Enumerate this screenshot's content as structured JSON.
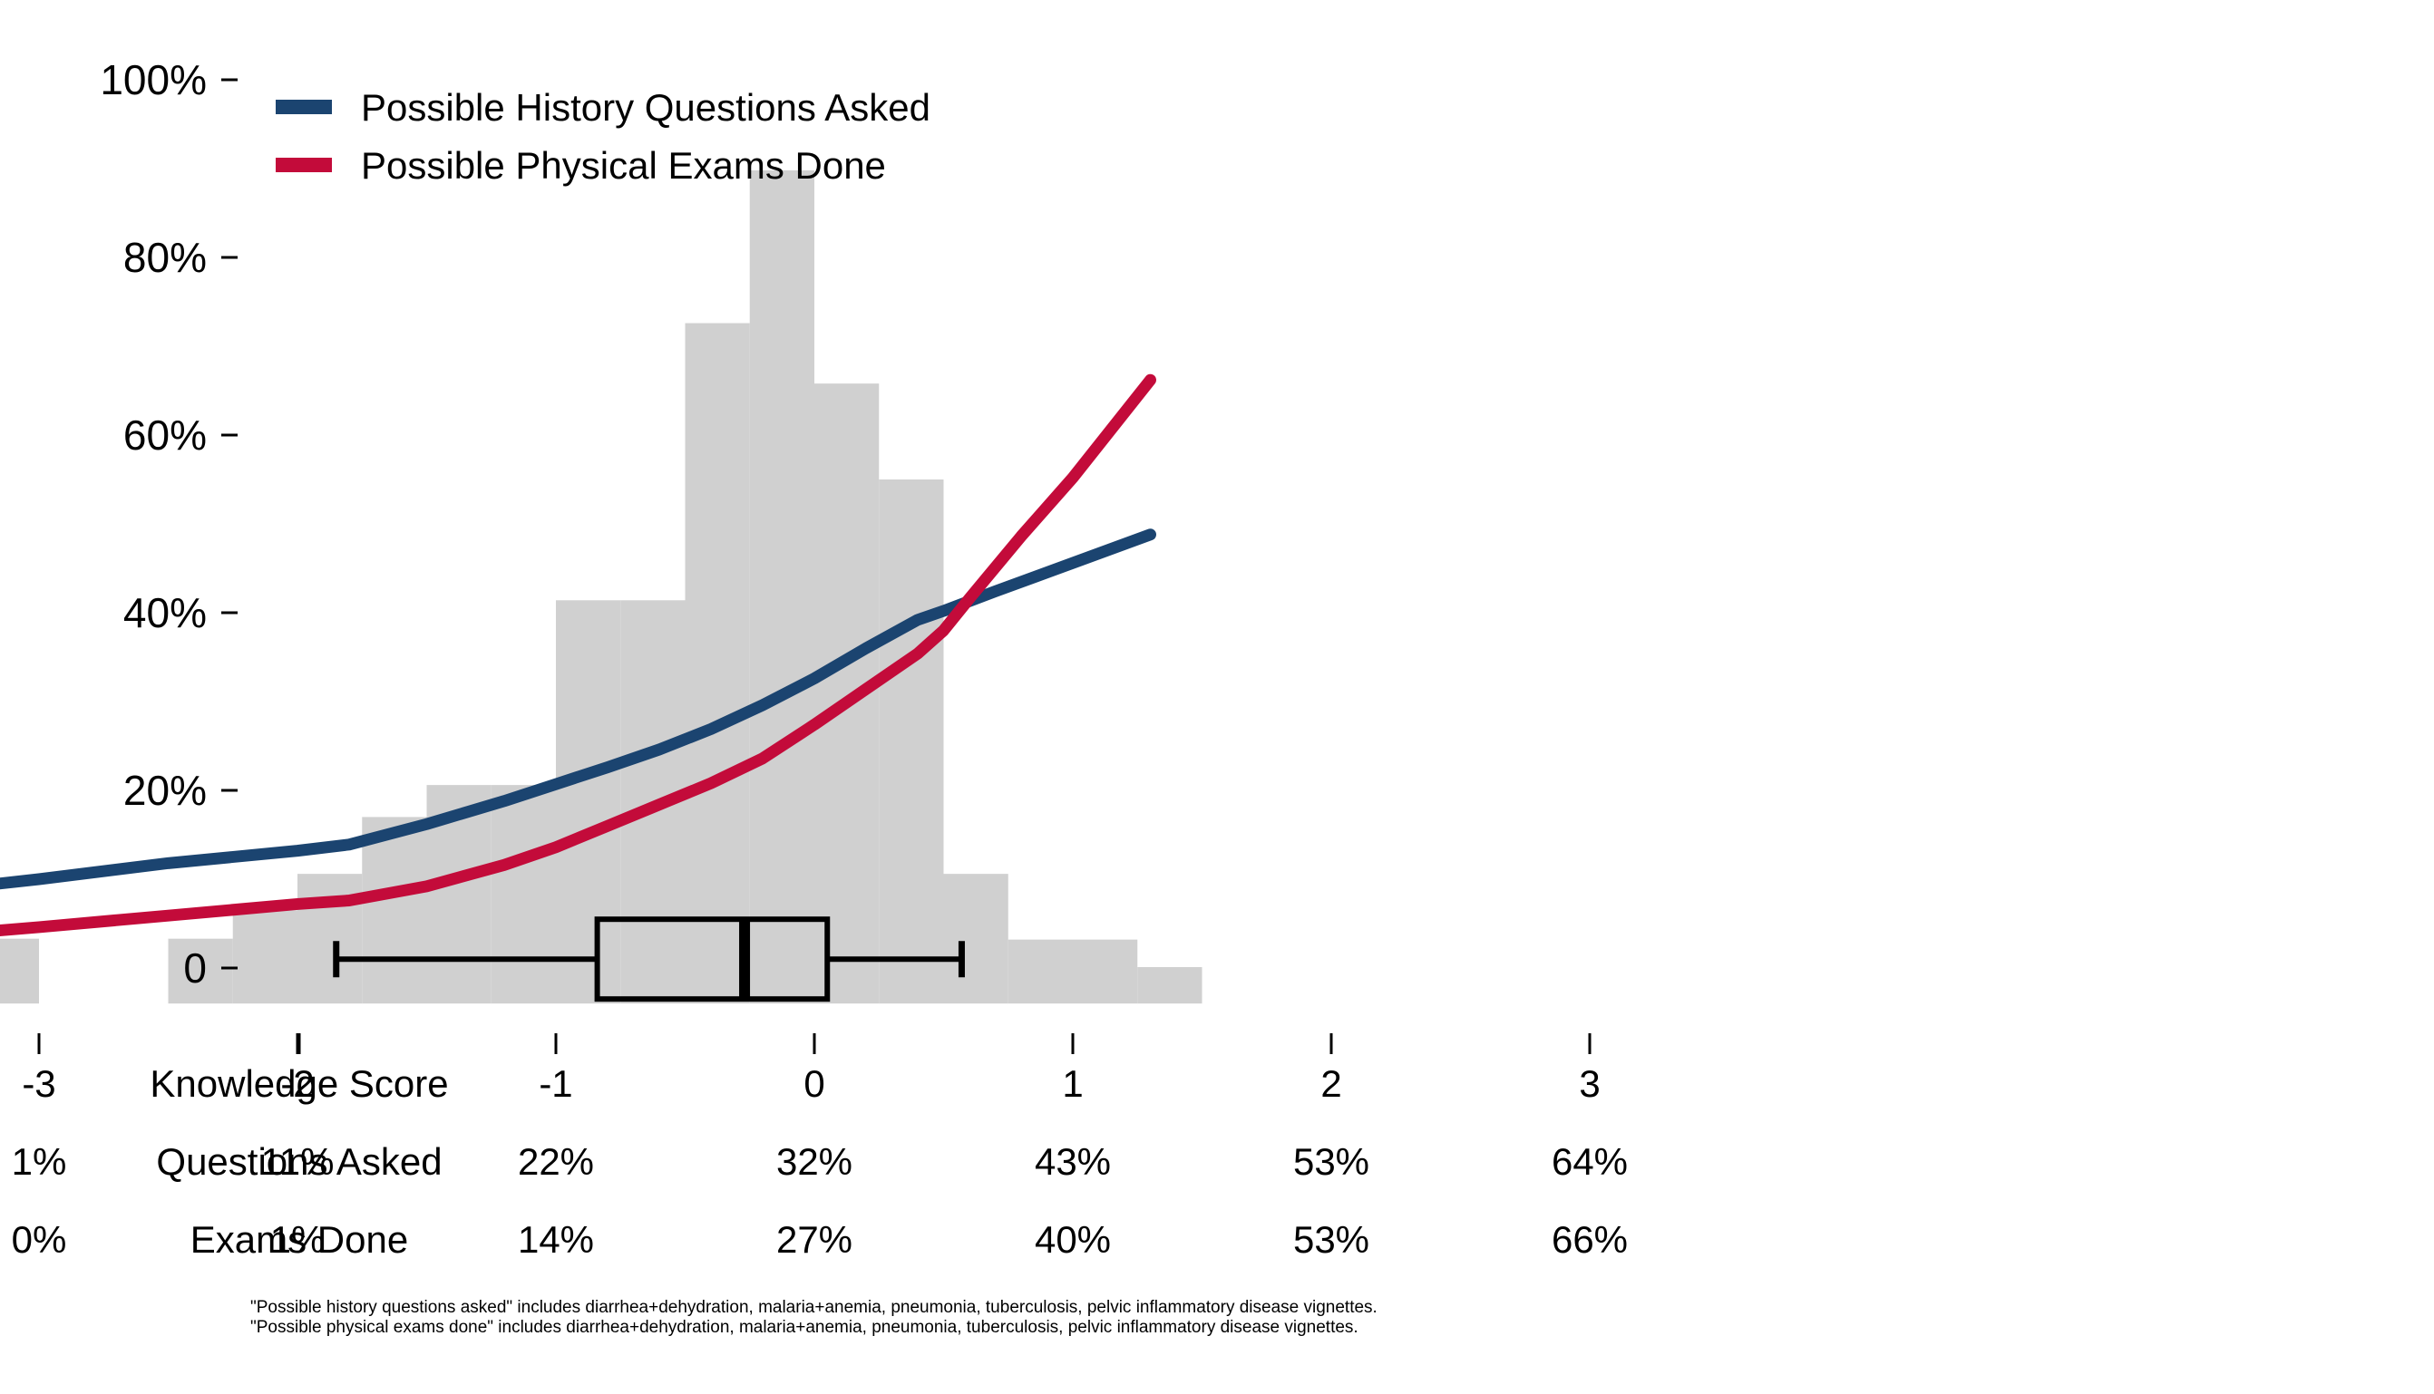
{
  "chart_data": {
    "type": "line",
    "title": "",
    "xlabel": "",
    "ylabel": "",
    "y_ticks": [
      "0",
      "20%",
      "40%",
      "60%",
      "80%",
      "100%"
    ],
    "y_tick_values": [
      0,
      20,
      40,
      60,
      80,
      100
    ],
    "ylim": [
      -4.5,
      100
    ],
    "xlim": [
      -4.0,
      3.0
    ],
    "legend": {
      "placement": "top-left",
      "entries": [
        {
          "label": "Possible History Questions Asked",
          "color": "#1b4470"
        },
        {
          "label": "Possible Physical Exams Done",
          "color": "#c30b3a"
        }
      ]
    },
    "series": [
      {
        "name": "Possible History Questions Asked",
        "color": "#1b4470",
        "x": [
          -3.5,
          -3.0,
          -2.5,
          -2.0,
          -1.8,
          -1.5,
          -1.2,
          -1.0,
          -0.8,
          -0.6,
          -0.4,
          -0.2,
          0.0,
          0.2,
          0.4,
          0.5,
          0.7,
          1.0,
          1.3
        ],
        "y": [
          8.4,
          10.0,
          11.8,
          13.2,
          13.9,
          16.2,
          18.8,
          20.7,
          22.6,
          24.6,
          26.9,
          29.6,
          32.6,
          36.0,
          39.2,
          40.2,
          42.4,
          45.6,
          48.8
        ]
      },
      {
        "name": "Possible Physical Exams Done",
        "color": "#c30b3a",
        "x": [
          -3.5,
          -3.0,
          -2.5,
          -2.0,
          -1.8,
          -1.5,
          -1.2,
          -1.0,
          -0.8,
          -0.6,
          -0.4,
          -0.2,
          0.0,
          0.2,
          0.4,
          0.5,
          0.6,
          0.8,
          1.0,
          1.3
        ],
        "y": [
          3.4,
          4.6,
          5.9,
          7.2,
          7.6,
          9.2,
          11.6,
          13.6,
          16.0,
          18.4,
          20.8,
          23.6,
          27.4,
          31.4,
          35.4,
          38.0,
          41.6,
          48.6,
          55.2,
          66.2
        ]
      }
    ],
    "histogram": {
      "color": "#d0d0d0",
      "bin_edges": [
        -3.5,
        -3.25,
        -3.0,
        -2.75,
        -2.5,
        -2.25,
        -2.0,
        -1.75,
        -1.5,
        -1.25,
        -1.0,
        -0.75,
        -0.5,
        -0.25,
        0.0,
        0.25,
        0.5,
        0.75,
        1.0,
        1.25,
        1.5
      ],
      "heights": [
        3.3,
        3.3,
        0,
        0,
        3.3,
        6.5,
        10.6,
        17.0,
        20.6,
        20.6,
        41.4,
        41.4,
        72.6,
        89.8,
        65.8,
        55.0,
        10.6,
        3.2,
        3.2,
        0.1
      ]
    },
    "boxplot": {
      "whisker_low": -1.85,
      "q1": -0.84,
      "median": -0.27,
      "q3": 0.05,
      "whisker_high": 0.57
    },
    "table": {
      "row_labels": [
        "Knowledge Score",
        "Questions Asked",
        "Exams Done"
      ],
      "columns": [
        {
          "score": "-3",
          "questions": "1%",
          "exams": "0%"
        },
        {
          "score": "-2",
          "questions": "11%",
          "exams": "1%"
        },
        {
          "score": "-1",
          "questions": "22%",
          "exams": "14%"
        },
        {
          "score": "0",
          "questions": "32%",
          "exams": "27%"
        },
        {
          "score": "1",
          "questions": "43%",
          "exams": "40%"
        },
        {
          "score": "2",
          "questions": "53%",
          "exams": "53%"
        },
        {
          "score": "3",
          "questions": "64%",
          "exams": "66%"
        }
      ],
      "column_values": [
        -3,
        -2,
        -1,
        0,
        1,
        2,
        3
      ]
    },
    "footnotes": [
      "\"Possible history questions asked\" includes diarrhea+dehydration, malaria+anemia, pneumonia, tuberculosis, pelvic inflammatory disease vignettes.",
      "\"Possible physical exams done\" includes diarrhea+dehydration, malaria+anemia, pneumonia, tuberculosis, pelvic inflammatory disease vignettes."
    ]
  }
}
